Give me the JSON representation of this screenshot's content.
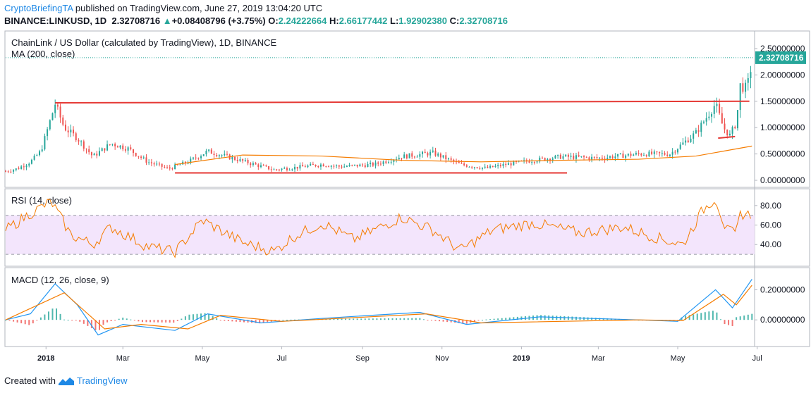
{
  "header": {
    "author": "CryptoBriefingTA",
    "published": "published on TradingView.com, June 27, 2019 13:04:20 UTC",
    "symbol": "BINANCE:LINKUSD, 1D",
    "last": "2.32708716",
    "change_arrow": "▲",
    "change": "+0.08408796 (+3.75%)",
    "o_label": "O:",
    "o": "2.24222664",
    "h_label": "H:",
    "h": "2.66177442",
    "l_label": "L:",
    "l": "1.92902380",
    "c_label": "C:",
    "c": "2.32708716"
  },
  "footer": {
    "created": "Created with",
    "brand": "TradingView"
  },
  "colors": {
    "up": "#26a69a",
    "down": "#ef5350",
    "ma": "#f57c00",
    "trend": "#e53935",
    "rsi": "#f57c00",
    "rsi_band": "#f3e5fc",
    "macd": "#2196f3",
    "signal": "#f57c00",
    "price_tag": "#26a69a"
  },
  "chart_data": [
    {
      "type": "candlestick",
      "title": "ChainLink / US Dollar (calculated by TradingView), 1D, BINANCE",
      "indicator": "MA (200, close)",
      "x_ticks": [
        "2018",
        "Mar",
        "May",
        "Jul",
        "Sep",
        "Nov",
        "2019",
        "Mar",
        "May",
        "Jul"
      ],
      "y_ticks": [
        "0.00000000",
        "0.50000000",
        "1.00000000",
        "1.50000000",
        "2.00000000",
        "2.50000000"
      ],
      "ylim": [
        0.0,
        2.7
      ],
      "last_price_label": "2.32708716",
      "price_path": [
        {
          "t": "2017-12-01",
          "v": 0.17
        },
        {
          "t": "2017-12-10",
          "v": 0.22
        },
        {
          "t": "2017-12-20",
          "v": 0.35
        },
        {
          "t": "2017-12-28",
          "v": 0.55
        },
        {
          "t": "2018-01-05",
          "v": 1.2
        },
        {
          "t": "2018-01-08",
          "v": 1.45
        },
        {
          "t": "2018-01-15",
          "v": 1.0
        },
        {
          "t": "2018-01-25",
          "v": 0.8
        },
        {
          "t": "2018-02-06",
          "v": 0.45
        },
        {
          "t": "2018-02-20",
          "v": 0.7
        },
        {
          "t": "2018-03-05",
          "v": 0.6
        },
        {
          "t": "2018-03-20",
          "v": 0.35
        },
        {
          "t": "2018-04-05",
          "v": 0.22
        },
        {
          "t": "2018-04-20",
          "v": 0.35
        },
        {
          "t": "2018-05-05",
          "v": 0.55
        },
        {
          "t": "2018-05-20",
          "v": 0.45
        },
        {
          "t": "2018-06-10",
          "v": 0.3
        },
        {
          "t": "2018-06-25",
          "v": 0.2
        },
        {
          "t": "2018-07-10",
          "v": 0.24
        },
        {
          "t": "2018-08-01",
          "v": 0.3
        },
        {
          "t": "2018-08-15",
          "v": 0.26
        },
        {
          "t": "2018-09-10",
          "v": 0.3
        },
        {
          "t": "2018-10-01",
          "v": 0.45
        },
        {
          "t": "2018-10-25",
          "v": 0.52
        },
        {
          "t": "2018-11-15",
          "v": 0.3
        },
        {
          "t": "2018-12-05",
          "v": 0.23
        },
        {
          "t": "2018-12-20",
          "v": 0.3
        },
        {
          "t": "2019-01-10",
          "v": 0.38
        },
        {
          "t": "2019-02-01",
          "v": 0.45
        },
        {
          "t": "2019-03-01",
          "v": 0.42
        },
        {
          "t": "2019-04-01",
          "v": 0.5
        },
        {
          "t": "2019-04-25",
          "v": 0.5
        },
        {
          "t": "2019-05-15",
          "v": 0.9
        },
        {
          "t": "2019-05-30",
          "v": 1.45
        },
        {
          "t": "2019-06-05",
          "v": 1.0
        },
        {
          "t": "2019-06-10",
          "v": 0.85
        },
        {
          "t": "2019-06-15",
          "v": 1.1
        },
        {
          "t": "2019-06-18",
          "v": 1.8
        },
        {
          "t": "2019-06-22",
          "v": 1.75
        },
        {
          "t": "2019-06-25",
          "v": 1.9
        },
        {
          "t": "2019-06-27",
          "v": 2.33
        }
      ],
      "ma200": [
        {
          "t": "2018-04-10",
          "v": 0.3
        },
        {
          "t": "2018-06-01",
          "v": 0.48
        },
        {
          "t": "2018-08-01",
          "v": 0.46
        },
        {
          "t": "2018-10-01",
          "v": 0.38
        },
        {
          "t": "2018-12-01",
          "v": 0.35
        },
        {
          "t": "2019-02-01",
          "v": 0.38
        },
        {
          "t": "2019-04-01",
          "v": 0.4
        },
        {
          "t": "2019-05-15",
          "v": 0.46
        },
        {
          "t": "2019-06-27",
          "v": 0.65
        }
      ],
      "trend_lines": [
        {
          "from": {
            "t": "2018-01-08",
            "v": 1.47
          },
          "to": {
            "t": "2019-06-25",
            "v": 1.5
          }
        },
        {
          "from": {
            "t": "2018-04-10",
            "v": 0.14
          },
          "to": {
            "t": "2019-02-05",
            "v": 0.14
          }
        },
        {
          "from": {
            "t": "2019-06-01",
            "v": 0.8
          },
          "to": {
            "t": "2019-06-14",
            "v": 0.83
          }
        }
      ]
    },
    {
      "type": "line",
      "title": "RSI (14, close)",
      "y_ticks": [
        "40.00",
        "60.00",
        "80.00"
      ],
      "ylim": [
        25,
        90
      ],
      "band": [
        30,
        70
      ],
      "series": [
        {
          "values": [
            {
              "t": "2017-12-01",
              "v": 55
            },
            {
              "t": "2017-12-20",
              "v": 72
            },
            {
              "t": "2018-01-05",
              "v": 84
            },
            {
              "t": "2018-01-20",
              "v": 50
            },
            {
              "t": "2018-02-06",
              "v": 40
            },
            {
              "t": "2018-02-20",
              "v": 58
            },
            {
              "t": "2018-03-20",
              "v": 38
            },
            {
              "t": "2018-04-10",
              "v": 32
            },
            {
              "t": "2018-05-01",
              "v": 65
            },
            {
              "t": "2018-06-01",
              "v": 42
            },
            {
              "t": "2018-06-25",
              "v": 33
            },
            {
              "t": "2018-07-10",
              "v": 48
            },
            {
              "t": "2018-08-01",
              "v": 62
            },
            {
              "t": "2018-08-25",
              "v": 45
            },
            {
              "t": "2018-10-01",
              "v": 68
            },
            {
              "t": "2018-10-25",
              "v": 55
            },
            {
              "t": "2018-11-15",
              "v": 34
            },
            {
              "t": "2018-12-10",
              "v": 55
            },
            {
              "t": "2019-01-10",
              "v": 62
            },
            {
              "t": "2019-02-15",
              "v": 52
            },
            {
              "t": "2019-03-20",
              "v": 58
            },
            {
              "t": "2019-04-20",
              "v": 45
            },
            {
              "t": "2019-05-05",
              "v": 40
            },
            {
              "t": "2019-05-20",
              "v": 75
            },
            {
              "t": "2019-05-30",
              "v": 88
            },
            {
              "t": "2019-06-07",
              "v": 55
            },
            {
              "t": "2019-06-15",
              "v": 50
            },
            {
              "t": "2019-06-18",
              "v": 72
            },
            {
              "t": "2019-06-27",
              "v": 70
            }
          ]
        }
      ]
    },
    {
      "type": "line",
      "title": "MACD (12, 26, close, 9)",
      "y_ticks": [
        "0.00000000",
        "0.20000000"
      ],
      "ylim": [
        -0.13,
        0.3
      ],
      "series": [
        {
          "values": [
            {
              "t": "2017-12-01",
              "v": 0.0
            },
            {
              "t": "2017-12-20",
              "v": 0.04
            },
            {
              "t": "2018-01-08",
              "v": 0.24
            },
            {
              "t": "2018-01-25",
              "v": 0.1
            },
            {
              "t": "2018-02-10",
              "v": -0.1
            },
            {
              "t": "2018-03-01",
              "v": -0.03
            },
            {
              "t": "2018-04-10",
              "v": -0.07
            },
            {
              "t": "2018-05-05",
              "v": 0.04
            },
            {
              "t": "2018-06-15",
              "v": -0.02
            },
            {
              "t": "2018-08-01",
              "v": 0.01
            },
            {
              "t": "2018-10-15",
              "v": 0.05
            },
            {
              "t": "2018-11-20",
              "v": -0.03
            },
            {
              "t": "2019-01-15",
              "v": 0.02
            },
            {
              "t": "2019-04-01",
              "v": 0.0
            },
            {
              "t": "2019-05-01",
              "v": -0.01
            },
            {
              "t": "2019-05-30",
              "v": 0.2
            },
            {
              "t": "2019-06-12",
              "v": 0.08
            },
            {
              "t": "2019-06-27",
              "v": 0.27
            }
          ]
        },
        {
          "values": [
            {
              "t": "2017-12-01",
              "v": 0.0
            },
            {
              "t": "2018-01-15",
              "v": 0.18
            },
            {
              "t": "2018-02-15",
              "v": -0.06
            },
            {
              "t": "2018-03-15",
              "v": -0.03
            },
            {
              "t": "2018-04-20",
              "v": -0.06
            },
            {
              "t": "2018-05-15",
              "v": 0.03
            },
            {
              "t": "2018-07-01",
              "v": -0.01
            },
            {
              "t": "2018-10-20",
              "v": 0.04
            },
            {
              "t": "2018-12-01",
              "v": -0.02
            },
            {
              "t": "2019-04-01",
              "v": 0.0
            },
            {
              "t": "2019-05-05",
              "v": -0.005
            },
            {
              "t": "2019-06-05",
              "v": 0.17
            },
            {
              "t": "2019-06-15",
              "v": 0.1
            },
            {
              "t": "2019-06-27",
              "v": 0.23
            }
          ]
        }
      ]
    }
  ]
}
